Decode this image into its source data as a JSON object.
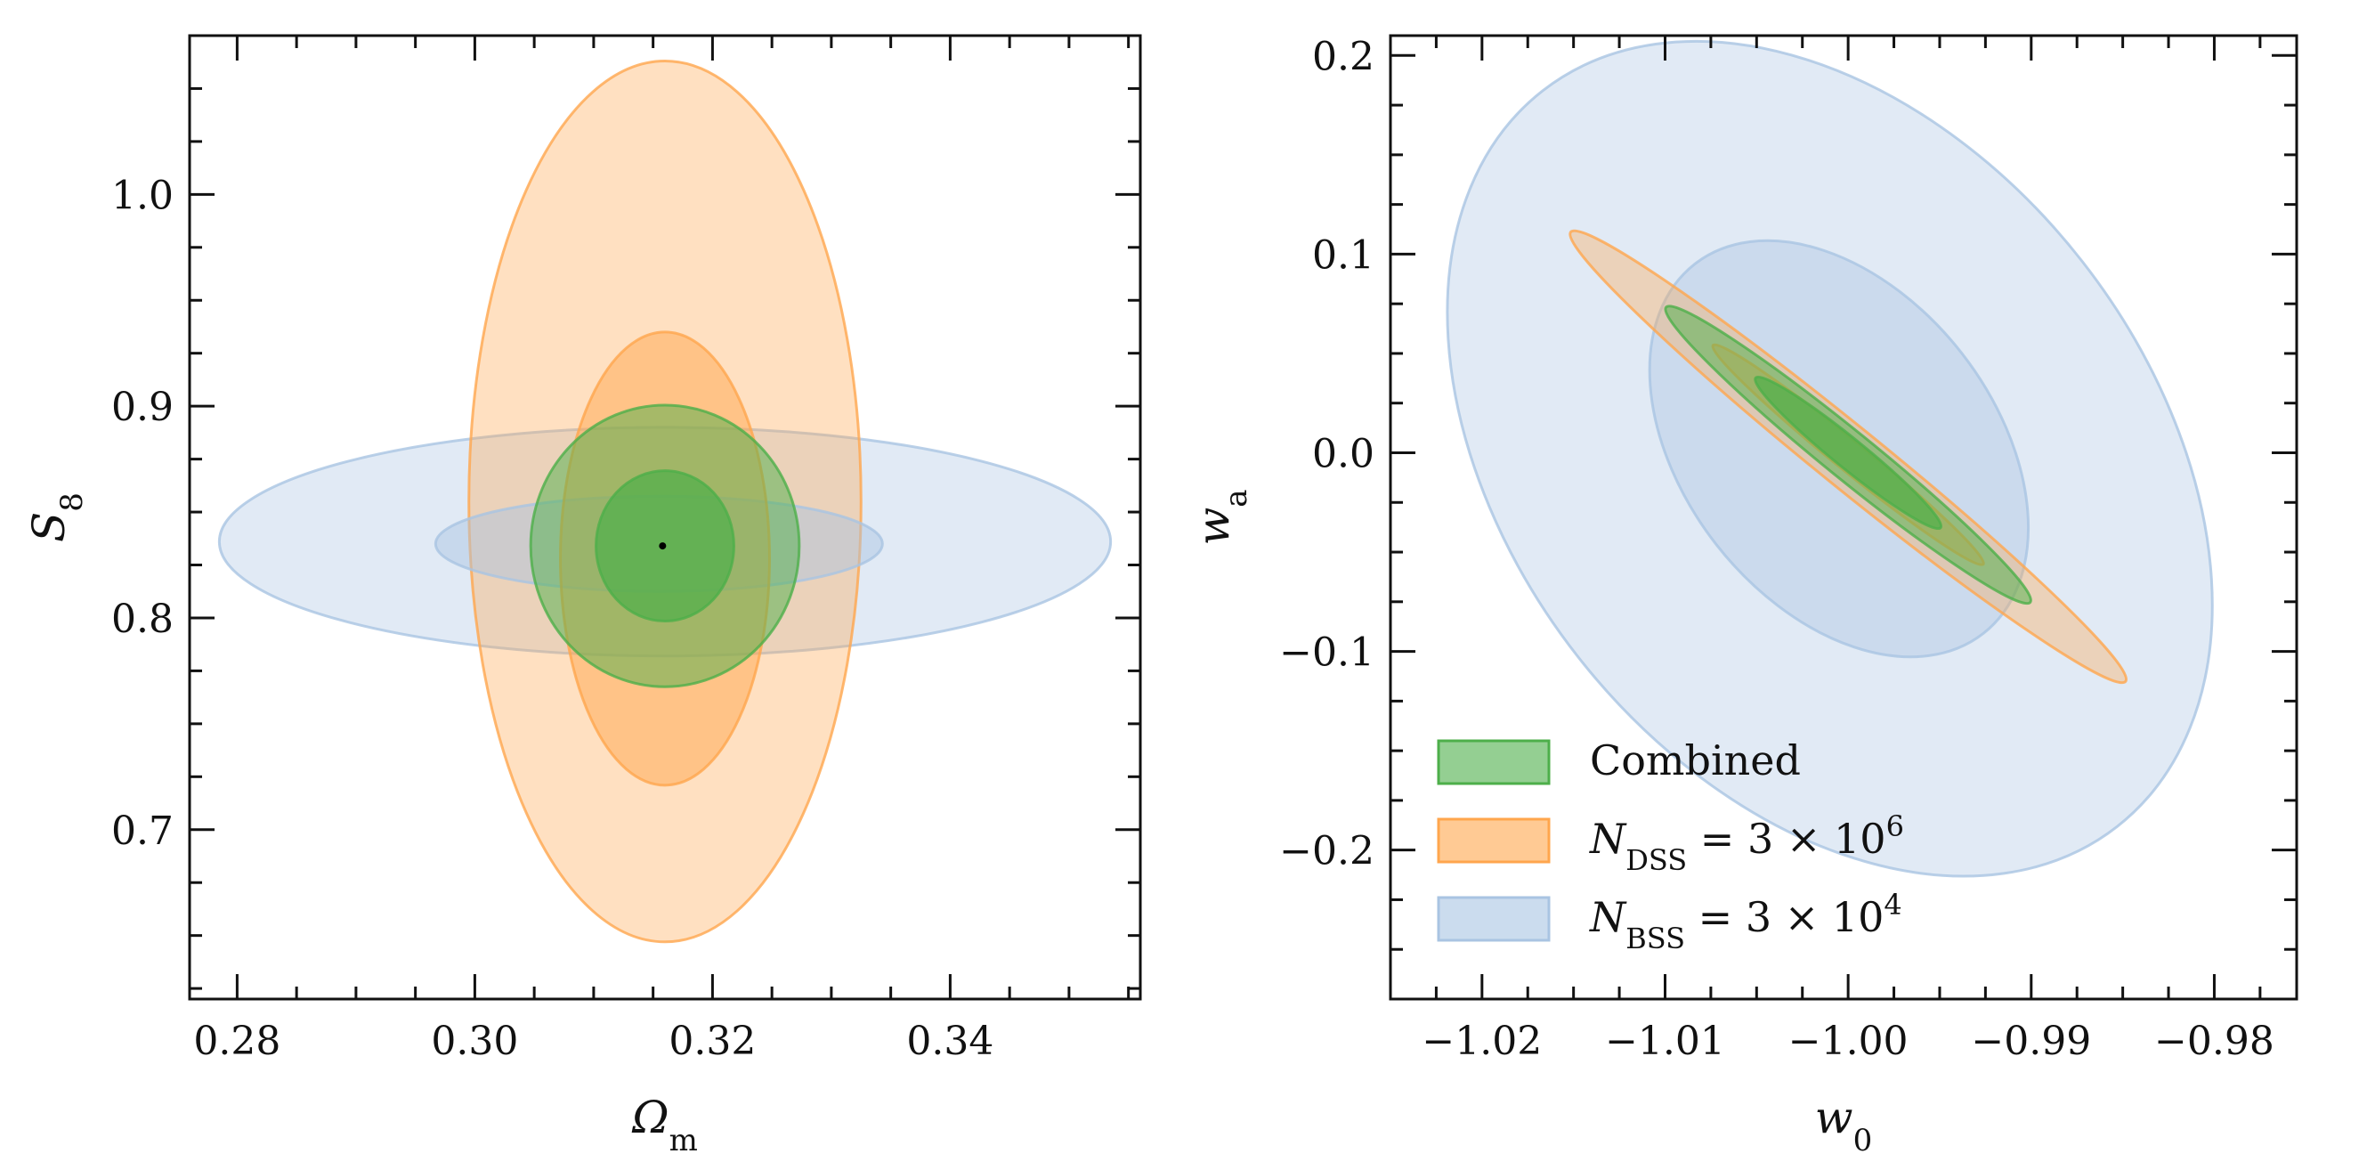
{
  "colors": {
    "combined": "#4daf4a",
    "dss": "#ffa64d",
    "bss": "#a9c4e2",
    "axis": "#111111"
  },
  "chart_data": [
    {
      "type": "contour",
      "panel": "left",
      "xlabel": "Ωm",
      "ylabel": "S8",
      "xlim": [
        0.276,
        0.356
      ],
      "ylim": [
        0.62,
        1.075
      ],
      "xticks": [
        0.28,
        0.3,
        0.32,
        0.34
      ],
      "xtick_labels": [
        "0.28",
        "0.30",
        "0.32",
        "0.34"
      ],
      "yticks": [
        0.7,
        0.8,
        0.9,
        1.0
      ],
      "ytick_labels": [
        "0.7",
        "0.8",
        "0.9",
        "1.0"
      ],
      "fiducial": [
        0.3158,
        0.834
      ],
      "series": [
        {
          "key": "bss",
          "level": "95%",
          "center": [
            0.316,
            0.836
          ],
          "axes": [
            0.0375,
            0.054
          ],
          "angle": 0,
          "opacity": 0.35
        },
        {
          "key": "dss",
          "level": "95%",
          "center": [
            0.316,
            0.855
          ],
          "axes": [
            0.0165,
            0.208
          ],
          "angle": 0,
          "opacity": 0.35
        },
        {
          "key": "bss",
          "level": "68%",
          "center": [
            0.3155,
            0.835
          ],
          "axes": [
            0.0188,
            0.0225
          ],
          "angle": 0,
          "opacity": 0.45
        },
        {
          "key": "dss",
          "level": "68%",
          "center": [
            0.316,
            0.828
          ],
          "axes": [
            0.0088,
            0.107
          ],
          "angle": 0,
          "opacity": 0.5
        },
        {
          "key": "combined",
          "level": "95%",
          "center": [
            0.316,
            0.834
          ],
          "axes": [
            0.0113,
            0.0665
          ],
          "angle": 0,
          "opacity": 0.5
        },
        {
          "key": "combined",
          "level": "68%",
          "center": [
            0.316,
            0.834
          ],
          "axes": [
            0.0058,
            0.0355
          ],
          "angle": 0,
          "opacity": 0.7
        }
      ]
    },
    {
      "type": "contour",
      "panel": "right",
      "xlabel": "w0",
      "ylabel": "wa",
      "xlim": [
        -1.025,
        -0.9755
      ],
      "ylim": [
        -0.275,
        0.21
      ],
      "xticks": [
        -1.02,
        -1.01,
        -1.0,
        -0.99,
        -0.98
      ],
      "xtick_labels": [
        "−1.02",
        "−1.01",
        "−1.00",
        "−0.99",
        "−0.98"
      ],
      "yticks": [
        -0.2,
        -0.1,
        0.0,
        0.1,
        0.2
      ],
      "ytick_labels": [
        "−0.2",
        "−0.1",
        "0.0",
        "0.1",
        "0.2"
      ],
      "series": [
        {
          "key": "bss",
          "level": "95%",
          "center": [
            -1.001,
            -0.003
          ],
          "axes": [
            0.0175,
            0.235
          ],
          "angle": 38,
          "opacity": 0.35
        },
        {
          "key": "bss",
          "level": "68%",
          "center": [
            -1.0005,
            0.002
          ],
          "axes": [
            0.0085,
            0.118
          ],
          "angle": 38,
          "opacity": 0.4
        },
        {
          "key": "dss",
          "level": "95%",
          "center": [
            -1.0,
            -0.002
          ],
          "axes": [
            0.0195,
            0.0155
          ],
          "angle": -39,
          "opacity": 0.35
        },
        {
          "key": "dss",
          "level": "68%",
          "center": [
            -1.0,
            -0.001
          ],
          "axes": [
            0.0095,
            0.0075
          ],
          "angle": -39,
          "opacity": 0.45
        },
        {
          "key": "combined",
          "level": "95%",
          "center": [
            -1.0,
            -0.001
          ],
          "axes": [
            0.0128,
            0.012
          ],
          "angle": -39,
          "opacity": 0.5
        },
        {
          "key": "combined",
          "level": "68%",
          "center": [
            -1.0,
            0.0
          ],
          "axes": [
            0.0065,
            0.0075
          ],
          "angle": -39,
          "opacity": 0.7
        }
      ]
    }
  ],
  "legend": [
    {
      "key": "combined",
      "label": "Combined"
    },
    {
      "key": "dss",
      "label": "NDSS = 3 × 10^6"
    },
    {
      "key": "bss",
      "label": "NBSS = 3 × 10^4"
    }
  ]
}
